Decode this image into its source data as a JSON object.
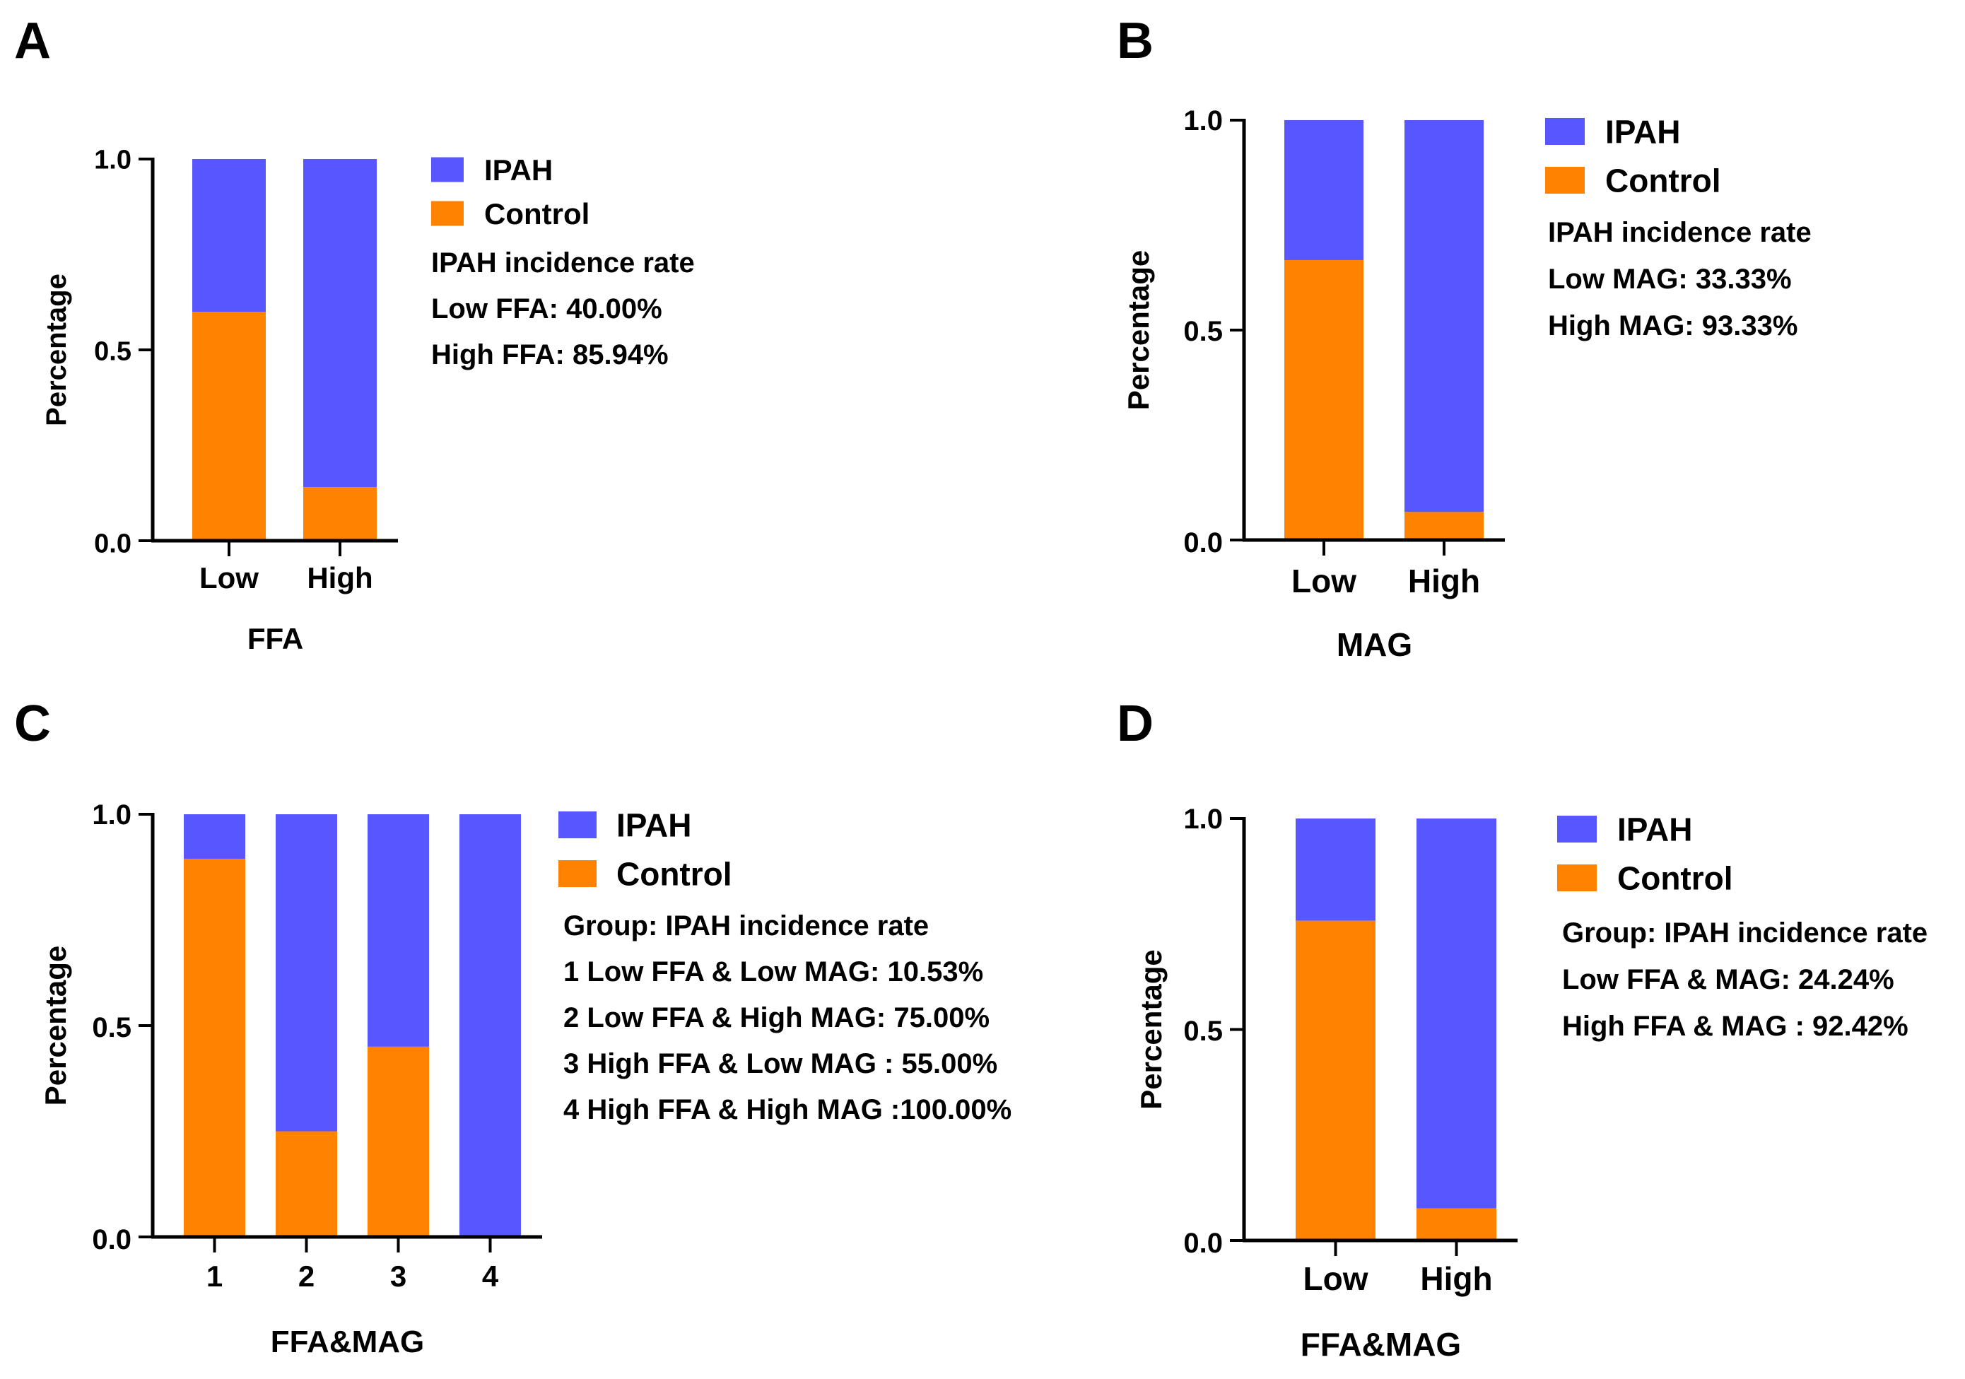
{
  "colors": {
    "ipah": "#5857FF",
    "control": "#FF8200",
    "axis": "#000000"
  },
  "chart_data": [
    {
      "panel": "A",
      "type": "bar",
      "stacked": true,
      "categories": [
        "Low",
        "High"
      ],
      "series": [
        {
          "name": "Control",
          "values": [
            0.6,
            0.1406
          ]
        },
        {
          "name": "IPAH",
          "values": [
            0.4,
            0.8594
          ]
        }
      ],
      "xlabel": "FFA",
      "ylabel": "Percentage",
      "ylim": [
        0,
        1.0
      ],
      "yticks": [
        "0.0",
        "0.5",
        "1.0"
      ],
      "legend": [
        "IPAH",
        "Control"
      ],
      "legend_position": "right",
      "annotations": [
        "IPAH incidence rate",
        "Low FFA: 40.00%",
        "High FFA: 85.94%"
      ]
    },
    {
      "panel": "B",
      "type": "bar",
      "stacked": true,
      "categories": [
        "Low",
        "High"
      ],
      "series": [
        {
          "name": "Control",
          "values": [
            0.6667,
            0.0667
          ]
        },
        {
          "name": "IPAH",
          "values": [
            0.3333,
            0.9333
          ]
        }
      ],
      "xlabel": "MAG",
      "ylabel": "Percentage",
      "ylim": [
        0,
        1.0
      ],
      "yticks": [
        "0.0",
        "0.5",
        "1.0"
      ],
      "legend": [
        "IPAH",
        "Control"
      ],
      "legend_position": "right",
      "annotations": [
        "IPAH incidence rate",
        "Low MAG: 33.33%",
        "High MAG: 93.33%"
      ]
    },
    {
      "panel": "C",
      "type": "bar",
      "stacked": true,
      "categories": [
        "1",
        "2",
        "3",
        "4"
      ],
      "series": [
        {
          "name": "Control",
          "values": [
            0.8947,
            0.25,
            0.45,
            0.0
          ]
        },
        {
          "name": "IPAH",
          "values": [
            0.1053,
            0.75,
            0.55,
            1.0
          ]
        }
      ],
      "xlabel": "FFA&MAG",
      "ylabel": "Percentage",
      "ylim": [
        0,
        1.0
      ],
      "yticks": [
        "0.0",
        "0.5",
        "1.0"
      ],
      "legend": [
        "IPAH",
        "Control"
      ],
      "legend_position": "right",
      "annotations": [
        "Group: IPAH incidence rate",
        "1 Low FFA & Low MAG: 10.53%",
        "2 Low FFA & High MAG: 75.00%",
        "3 High FFA & Low  MAG : 55.00%",
        "4 High FFA & High  MAG :100.00%"
      ]
    },
    {
      "panel": "D",
      "type": "bar",
      "stacked": true,
      "categories": [
        "Low",
        "High"
      ],
      "series": [
        {
          "name": "Control",
          "values": [
            0.7576,
            0.0758
          ]
        },
        {
          "name": "IPAH",
          "values": [
            0.2424,
            0.9242
          ]
        }
      ],
      "xlabel": "FFA&MAG",
      "ylabel": "Percentage",
      "ylim": [
        0,
        1.0
      ],
      "yticks": [
        "0.0",
        "0.5",
        "1.0"
      ],
      "legend": [
        "IPAH",
        "Control"
      ],
      "legend_position": "right",
      "annotations": [
        "Group: IPAH incidence rate",
        "Low FFA & MAG: 24.24%",
        "High FFA & MAG : 92.42%"
      ]
    }
  ]
}
